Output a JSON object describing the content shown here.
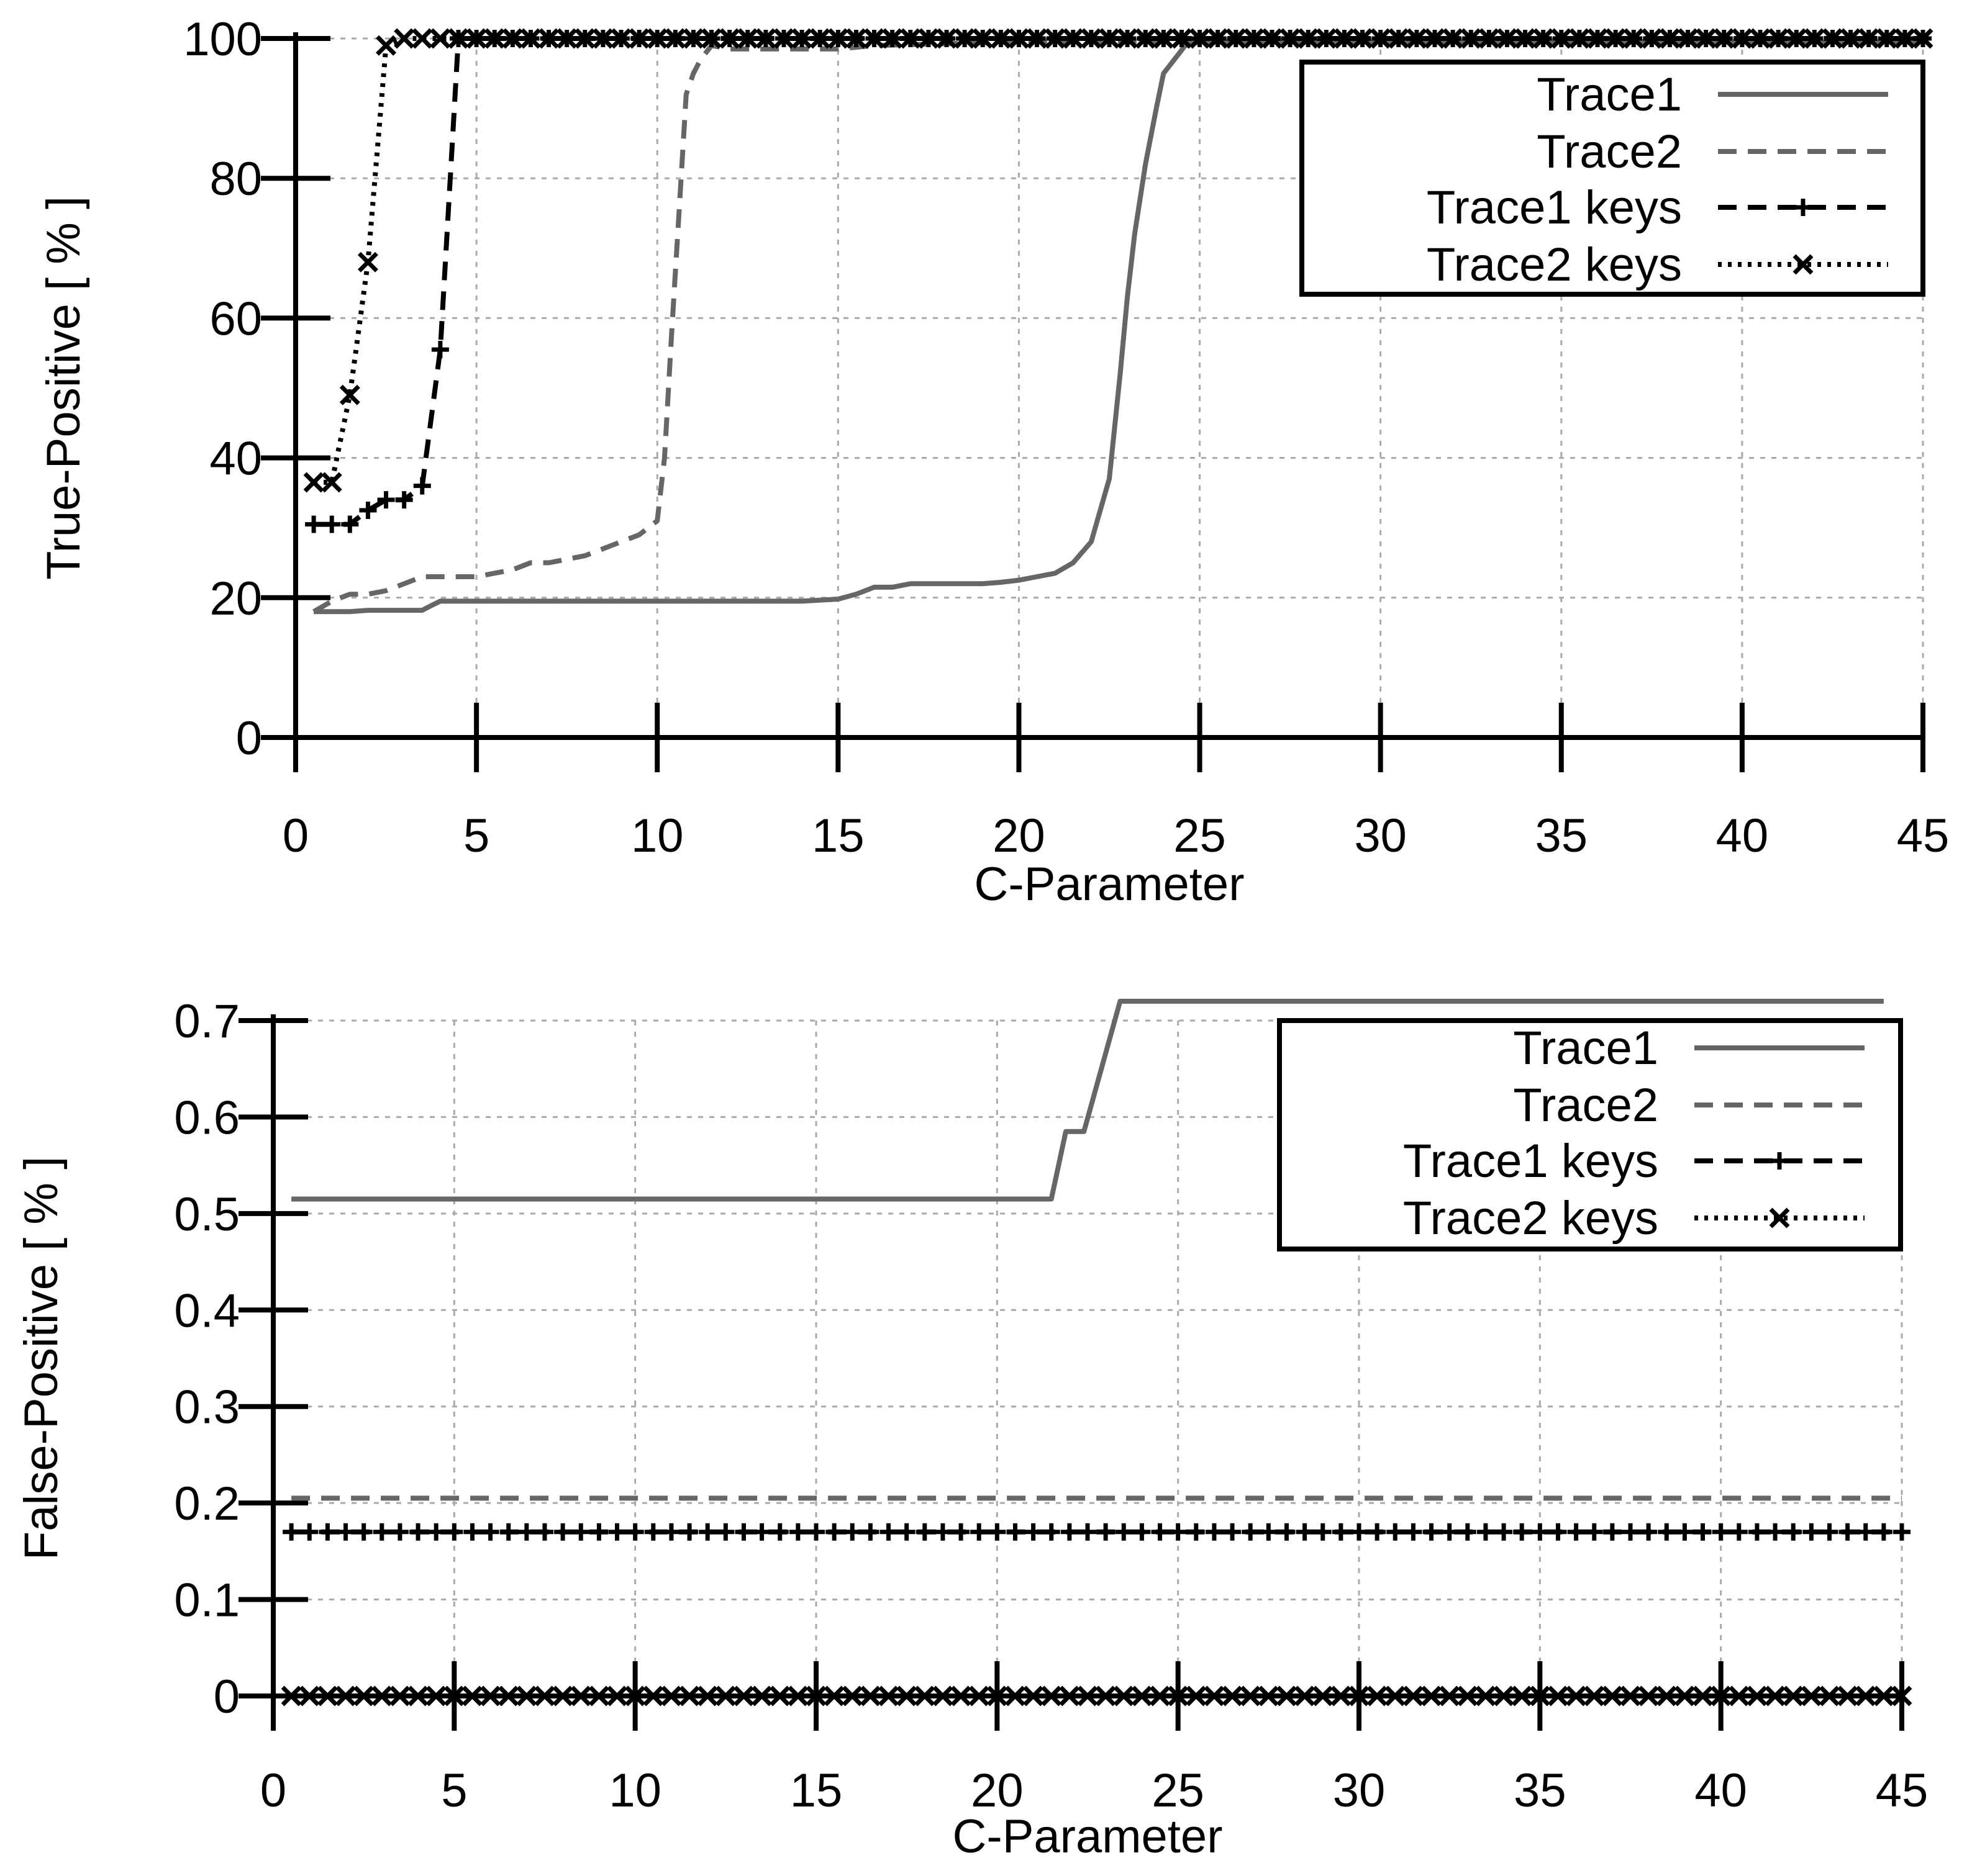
{
  "chart_data": [
    {
      "type": "line",
      "xlabel": "C-Parameter",
      "ylabel": "True-Positive [ % ]",
      "xlim": [
        0,
        45
      ],
      "ylim": [
        0,
        100
      ],
      "xticks": [
        0,
        5,
        10,
        15,
        20,
        25,
        30,
        35,
        40,
        45
      ],
      "yticks": [
        0,
        20,
        40,
        60,
        80,
        100
      ],
      "grid": true,
      "legend_position": "top-right",
      "series": [
        {
          "name": "Trace1",
          "color": "#666666",
          "style": "solid",
          "marker": "none",
          "x": [
            0.5,
            1.5,
            2,
            2.5,
            3,
            3.5,
            3.8,
            4,
            5,
            6,
            7,
            8,
            9,
            10,
            11,
            12,
            13,
            14,
            15,
            15.5,
            16,
            16.5,
            17,
            18,
            19,
            19.5,
            20,
            20.5,
            21,
            21.5,
            22,
            22.5,
            22.8,
            23,
            23.2,
            23.5,
            23.8,
            24,
            24.3,
            24.6,
            25,
            26,
            30,
            35,
            40,
            45
          ],
          "y": [
            18,
            18,
            18.2,
            18.2,
            18.2,
            18.2,
            19,
            19.5,
            19.5,
            19.5,
            19.5,
            19.5,
            19.5,
            19.5,
            19.5,
            19.5,
            19.5,
            19.5,
            19.8,
            20.5,
            21.5,
            21.5,
            22,
            22,
            22,
            22.2,
            22.5,
            23,
            23.5,
            25,
            28,
            37,
            52,
            63,
            72,
            82,
            90,
            95,
            97,
            99,
            99.5,
            99.5,
            99.5,
            99.5,
            99.5,
            99.5
          ]
        },
        {
          "name": "Trace2",
          "color": "#666666",
          "style": "dashed",
          "marker": "none",
          "x": [
            0.5,
            1,
            1.5,
            2,
            2.5,
            3,
            3.5,
            4,
            5,
            6,
            6.5,
            7,
            7.5,
            8,
            8.5,
            9,
            9.5,
            10,
            10.2,
            10.4,
            10.6,
            10.8,
            11,
            11.2,
            11.5,
            12,
            14,
            15,
            16,
            20,
            25,
            30,
            35,
            40,
            45
          ],
          "y": [
            18,
            19.5,
            20.5,
            20.5,
            21,
            22,
            23,
            23,
            23,
            24,
            25,
            25,
            25.5,
            26,
            27,
            28,
            29,
            31,
            40,
            58,
            75,
            92,
            95,
            97,
            99,
            98.5,
            98.5,
            98.5,
            99,
            99.5,
            99.5,
            99.5,
            99.5,
            99.5,
            99.5
          ]
        },
        {
          "name": "Trace1 keys",
          "color": "#000000",
          "style": "dashed",
          "marker": "plus",
          "x": [
            0.5,
            1,
            1.5,
            2,
            2.5,
            3,
            3.5,
            4,
            4.5,
            5,
            5.5,
            6,
            6.5,
            7,
            7.5,
            8,
            8.5,
            9,
            9.5,
            10,
            10.5,
            11,
            11.5,
            12,
            12.5,
            13,
            13.5,
            14,
            14.5,
            15,
            15.5,
            16,
            16.5,
            17,
            17.5,
            18,
            18.5,
            19,
            19.5,
            20,
            20.5,
            21,
            21.5,
            22,
            22.5,
            23,
            23.5,
            24,
            24.5,
            25,
            25.5,
            26,
            26.5,
            27,
            27.5,
            28,
            28.5,
            29,
            29.5,
            30,
            30.5,
            31,
            31.5,
            32,
            32.5,
            33,
            33.5,
            34,
            34.5,
            35,
            35.5,
            36,
            36.5,
            37,
            37.5,
            38,
            38.5,
            39,
            39.5,
            40,
            40.5,
            41,
            41.5,
            42,
            42.5,
            43,
            43.5,
            44,
            44.5,
            45
          ],
          "y": [
            30.5,
            30.5,
            30.5,
            32.5,
            34,
            34,
            36,
            55.5,
            100,
            100,
            100,
            100,
            100,
            100,
            100,
            100,
            100,
            100,
            100,
            100,
            100,
            100,
            100,
            100,
            100,
            100,
            100,
            100,
            100,
            100,
            100,
            100,
            100,
            100,
            100,
            100,
            100,
            100,
            100,
            100,
            100,
            100,
            100,
            100,
            100,
            100,
            100,
            100,
            100,
            100,
            100,
            100,
            100,
            100,
            100,
            100,
            100,
            100,
            100,
            100,
            100,
            100,
            100,
            100,
            100,
            100,
            100,
            100,
            100,
            100,
            100,
            100,
            100,
            100,
            100,
            100,
            100,
            100,
            100,
            100,
            100,
            100,
            100,
            100,
            100,
            100,
            100,
            100,
            100,
            100
          ]
        },
        {
          "name": "Trace2 keys",
          "color": "#000000",
          "style": "dotted",
          "marker": "cross",
          "x": [
            0.5,
            1,
            1.5,
            2,
            2.5,
            3,
            3.5,
            4,
            4.5,
            5,
            5.5,
            6,
            6.5,
            7,
            7.5,
            8,
            8.5,
            9,
            9.5,
            10,
            10.5,
            11,
            11.5,
            12,
            12.5,
            13,
            13.5,
            14,
            14.5,
            15,
            15.5,
            16,
            16.5,
            17,
            17.5,
            18,
            18.5,
            19,
            19.5,
            20,
            20.5,
            21,
            21.5,
            22,
            22.5,
            23,
            23.5,
            24,
            24.5,
            25,
            25.5,
            26,
            26.5,
            27,
            27.5,
            28,
            28.5,
            29,
            29.5,
            30,
            30.5,
            31,
            31.5,
            32,
            32.5,
            33,
            33.5,
            34,
            34.5,
            35,
            35.5,
            36,
            36.5,
            37,
            37.5,
            38,
            38.5,
            39,
            39.5,
            40,
            40.5,
            41,
            41.5,
            42,
            42.5,
            43,
            43.5,
            44,
            44.5,
            45
          ],
          "y": [
            36.5,
            36.5,
            49,
            68,
            99,
            100,
            100,
            100,
            100,
            100,
            100,
            100,
            100,
            100,
            100,
            100,
            100,
            100,
            100,
            100,
            100,
            100,
            100,
            100,
            100,
            100,
            100,
            100,
            100,
            100,
            100,
            100,
            100,
            100,
            100,
            100,
            100,
            100,
            100,
            100,
            100,
            100,
            100,
            100,
            100,
            100,
            100,
            100,
            100,
            100,
            100,
            100,
            100,
            100,
            100,
            100,
            100,
            100,
            100,
            100,
            100,
            100,
            100,
            100,
            100,
            100,
            100,
            100,
            100,
            100,
            100,
            100,
            100,
            100,
            100,
            100,
            100,
            100,
            100,
            100,
            100,
            100,
            100,
            100,
            100,
            100,
            100,
            100,
            100,
            100
          ]
        }
      ]
    },
    {
      "type": "line",
      "xlabel": "C-Parameter",
      "ylabel": "False-Positive [ % ]",
      "xlim": [
        0,
        45
      ],
      "ylim": [
        0,
        0.7
      ],
      "xticks": [
        0,
        5,
        10,
        15,
        20,
        25,
        30,
        35,
        40,
        45
      ],
      "yticks": [
        0,
        0.1,
        0.2,
        0.3,
        0.4,
        0.5,
        0.6,
        0.7
      ],
      "grid": true,
      "legend_position": "top-right",
      "series": [
        {
          "name": "Trace1",
          "color": "#666666",
          "style": "solid",
          "marker": "none",
          "x": [
            0.5,
            21.5,
            21.9,
            22.4,
            23.4,
            25,
            30,
            35,
            40,
            44.5
          ],
          "y": [
            0.515,
            0.515,
            0.585,
            0.585,
            0.72,
            0.72,
            0.72,
            0.72,
            0.72,
            0.72
          ]
        },
        {
          "name": "Trace2",
          "color": "#666666",
          "style": "dashed",
          "marker": "none",
          "x": [
            0.5,
            10,
            20,
            30,
            40,
            45
          ],
          "y": [
            0.205,
            0.205,
            0.205,
            0.205,
            0.205,
            0.205
          ]
        },
        {
          "name": "Trace1 keys",
          "color": "#000000",
          "style": "dashed",
          "marker": "plus",
          "x": [
            0.5,
            1,
            1.5,
            2,
            2.5,
            3,
            3.5,
            4,
            4.5,
            5,
            5.5,
            6,
            6.5,
            7,
            7.5,
            8,
            8.5,
            9,
            9.5,
            10,
            10.5,
            11,
            11.5,
            12,
            12.5,
            13,
            13.5,
            14,
            14.5,
            15,
            15.5,
            16,
            16.5,
            17,
            17.5,
            18,
            18.5,
            19,
            19.5,
            20,
            20.5,
            21,
            21.5,
            22,
            22.5,
            23,
            23.5,
            24,
            24.5,
            25,
            25.5,
            26,
            26.5,
            27,
            27.5,
            28,
            28.5,
            29,
            29.5,
            30,
            30.5,
            31,
            31.5,
            32,
            32.5,
            33,
            33.5,
            34,
            34.5,
            35,
            35.5,
            36,
            36.5,
            37,
            37.5,
            38,
            38.5,
            39,
            39.5,
            40,
            40.5,
            41,
            41.5,
            42,
            42.5,
            43,
            43.5,
            44,
            44.5,
            45
          ],
          "y": [
            0.17,
            0.17,
            0.17,
            0.17,
            0.17,
            0.17,
            0.17,
            0.17,
            0.17,
            0.17,
            0.17,
            0.17,
            0.17,
            0.17,
            0.17,
            0.17,
            0.17,
            0.17,
            0.17,
            0.17,
            0.17,
            0.17,
            0.17,
            0.17,
            0.17,
            0.17,
            0.17,
            0.17,
            0.17,
            0.17,
            0.17,
            0.17,
            0.17,
            0.17,
            0.17,
            0.17,
            0.17,
            0.17,
            0.17,
            0.17,
            0.17,
            0.17,
            0.17,
            0.17,
            0.17,
            0.17,
            0.17,
            0.17,
            0.17,
            0.17,
            0.17,
            0.17,
            0.17,
            0.17,
            0.17,
            0.17,
            0.17,
            0.17,
            0.17,
            0.17,
            0.17,
            0.17,
            0.17,
            0.17,
            0.17,
            0.17,
            0.17,
            0.17,
            0.17,
            0.17,
            0.17,
            0.17,
            0.17,
            0.17,
            0.17,
            0.17,
            0.17,
            0.17,
            0.17,
            0.17,
            0.17,
            0.17,
            0.17,
            0.17,
            0.17,
            0.17,
            0.17,
            0.17,
            0.17,
            0.17
          ]
        },
        {
          "name": "Trace2 keys",
          "color": "#000000",
          "style": "dotted",
          "marker": "cross",
          "x": [
            0.5,
            1,
            1.5,
            2,
            2.5,
            3,
            3.5,
            4,
            4.5,
            5,
            5.5,
            6,
            6.5,
            7,
            7.5,
            8,
            8.5,
            9,
            9.5,
            10,
            10.5,
            11,
            11.5,
            12,
            12.5,
            13,
            13.5,
            14,
            14.5,
            15,
            15.5,
            16,
            16.5,
            17,
            17.5,
            18,
            18.5,
            19,
            19.5,
            20,
            20.5,
            21,
            21.5,
            22,
            22.5,
            23,
            23.5,
            24,
            24.5,
            25,
            25.5,
            26,
            26.5,
            27,
            27.5,
            28,
            28.5,
            29,
            29.5,
            30,
            30.5,
            31,
            31.5,
            32,
            32.5,
            33,
            33.5,
            34,
            34.5,
            35,
            35.5,
            36,
            36.5,
            37,
            37.5,
            38,
            38.5,
            39,
            39.5,
            40,
            40.5,
            41,
            41.5,
            42,
            42.5,
            43,
            43.5,
            44,
            44.5,
            45
          ],
          "y": [
            0,
            0,
            0,
            0,
            0,
            0,
            0,
            0,
            0,
            0,
            0,
            0,
            0,
            0,
            0,
            0,
            0,
            0,
            0,
            0,
            0,
            0,
            0,
            0,
            0,
            0,
            0,
            0,
            0,
            0,
            0,
            0,
            0,
            0,
            0,
            0,
            0,
            0,
            0,
            0,
            0,
            0,
            0,
            0,
            0,
            0,
            0,
            0,
            0,
            0,
            0,
            0,
            0,
            0,
            0,
            0,
            0,
            0,
            0,
            0,
            0,
            0,
            0,
            0,
            0,
            0,
            0,
            0,
            0,
            0,
            0,
            0,
            0,
            0,
            0,
            0,
            0,
            0,
            0,
            0,
            0,
            0,
            0,
            0,
            0,
            0,
            0,
            0,
            0,
            0
          ]
        }
      ]
    }
  ]
}
